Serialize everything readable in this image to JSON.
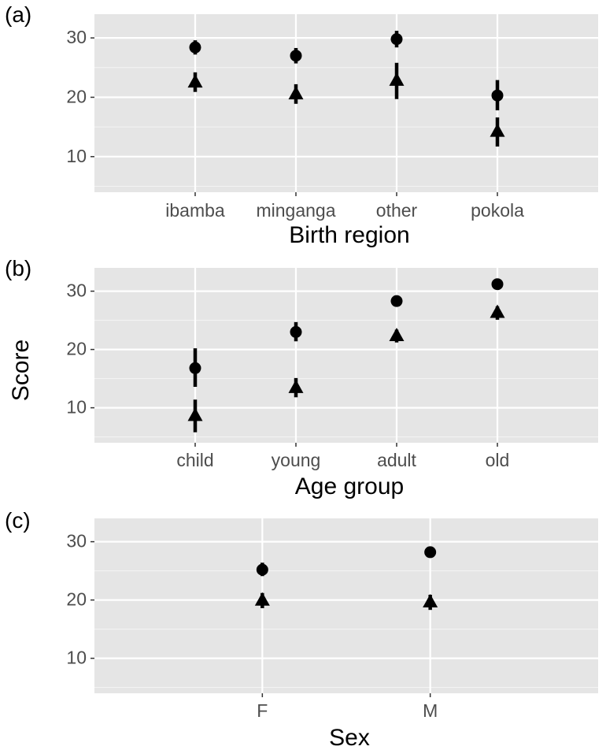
{
  "figure": {
    "y_axis_title": "Score"
  },
  "chart_data": [
    {
      "type": "scatter",
      "panel_label": "(a)",
      "xlabel": "Birth region",
      "ylabel": "Score",
      "categories": [
        "ibamba",
        "minganga",
        "other",
        "pokola"
      ],
      "ylim": [
        4,
        34
      ],
      "yticks": [
        10,
        20,
        30
      ],
      "grid": true,
      "series": [
        {
          "marker": "circle",
          "values": [
            28.4,
            27.0,
            29.8,
            20.3
          ],
          "error_low": [
            27.2,
            25.7,
            28.4,
            17.8
          ],
          "error_high": [
            29.6,
            28.3,
            31.2,
            22.9
          ]
        },
        {
          "marker": "triangle",
          "values": [
            22.5,
            20.5,
            22.8,
            14.2
          ],
          "error_low": [
            20.9,
            18.9,
            19.7,
            11.7
          ],
          "error_high": [
            24.2,
            22.2,
            25.8,
            16.6
          ]
        }
      ]
    },
    {
      "type": "scatter",
      "panel_label": "(b)",
      "xlabel": "Age group",
      "ylabel": "Score",
      "categories": [
        "child",
        "young",
        "adult",
        "old"
      ],
      "ylim": [
        4,
        34
      ],
      "yticks": [
        10,
        20,
        30
      ],
      "grid": true,
      "series": [
        {
          "marker": "circle",
          "values": [
            16.8,
            23.0,
            28.3,
            31.2
          ],
          "error_low": [
            13.6,
            21.4,
            27.4,
            30.4
          ],
          "error_high": [
            20.2,
            24.7,
            29.1,
            32.0
          ]
        },
        {
          "marker": "triangle",
          "values": [
            8.6,
            13.4,
            22.3,
            26.3
          ],
          "error_low": [
            5.8,
            11.8,
            21.2,
            25.1
          ],
          "error_high": [
            11.4,
            15.1,
            23.4,
            27.4
          ]
        }
      ]
    },
    {
      "type": "scatter",
      "panel_label": "(c)",
      "xlabel": "Sex",
      "ylabel": "Score",
      "categories": [
        "F",
        "M"
      ],
      "ylim": [
        4,
        34
      ],
      "yticks": [
        10,
        20,
        30
      ],
      "grid": true,
      "series": [
        {
          "marker": "circle",
          "values": [
            25.2,
            28.2
          ],
          "error_low": [
            24.1,
            27.4
          ],
          "error_high": [
            26.4,
            29.0
          ]
        },
        {
          "marker": "triangle",
          "values": [
            19.9,
            19.6
          ],
          "error_low": [
            18.6,
            18.3
          ],
          "error_high": [
            21.2,
            20.9
          ]
        }
      ]
    }
  ]
}
